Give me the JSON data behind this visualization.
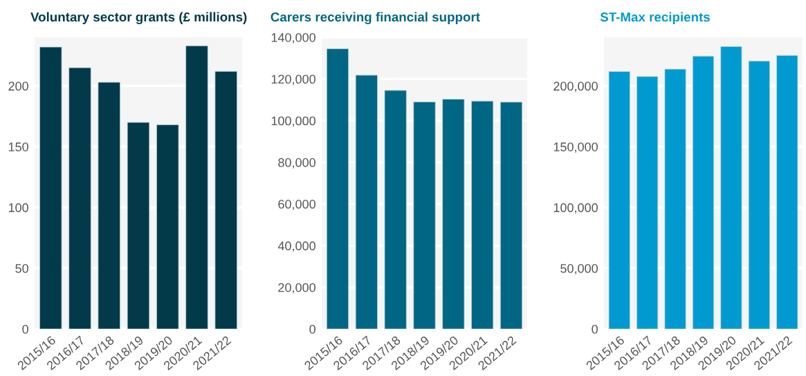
{
  "chart_data": [
    {
      "type": "bar",
      "title": "Voluntary sector grants (£ millions)",
      "categories": [
        "2015/16",
        "2016/17",
        "2017/18",
        "2018/19",
        "2019/20",
        "2020/21",
        "2021/22"
      ],
      "values": [
        232,
        215,
        203,
        170,
        168,
        233,
        212
      ],
      "color": "#023a4a",
      "ylim": [
        0,
        240
      ],
      "yticks": [
        0,
        50,
        100,
        150,
        200
      ],
      "grid": "y"
    },
    {
      "type": "bar",
      "title": "Carers receiving financial support",
      "categories": [
        "2015/16",
        "2016/17",
        "2017/18",
        "2018/19",
        "2019/20",
        "2020/21",
        "2021/22"
      ],
      "values": [
        134500,
        121800,
        114500,
        109000,
        110300,
        109400,
        108900
      ],
      "color": "#006684",
      "ylim": [
        0,
        140000
      ],
      "yticks": [
        {
          "value": 0,
          "label": "0"
        },
        {
          "value": 20000,
          "label": "20,000"
        },
        {
          "value": 40000,
          "label": "40,000"
        },
        {
          "value": 60000,
          "label": "60,000"
        },
        {
          "value": 80000,
          "label": "80,000"
        },
        {
          "value": 100000,
          "label": "100,000"
        },
        {
          "value": 120000,
          "label": "120,000"
        },
        {
          "value": 140000,
          "label": "140,000"
        }
      ],
      "grid": "y"
    },
    {
      "type": "bar",
      "title": "ST-Max recipients",
      "categories": [
        "2015/16",
        "2016/17",
        "2017/18",
        "2018/19",
        "2019/20",
        "2020/21",
        "2021/22"
      ],
      "values": [
        211900,
        207700,
        213800,
        224500,
        232400,
        220500,
        225100
      ],
      "color": "#009ad0",
      "ylim": [
        0,
        240000
      ],
      "yticks": [
        {
          "value": 0,
          "label": "0"
        },
        {
          "value": 50000,
          "label": "50,000"
        },
        {
          "value": 100000,
          "label": "100,000"
        },
        {
          "value": 150000,
          "label": "150,000"
        },
        {
          "value": 200000,
          "label": "200,000"
        }
      ],
      "grid": "y"
    }
  ]
}
